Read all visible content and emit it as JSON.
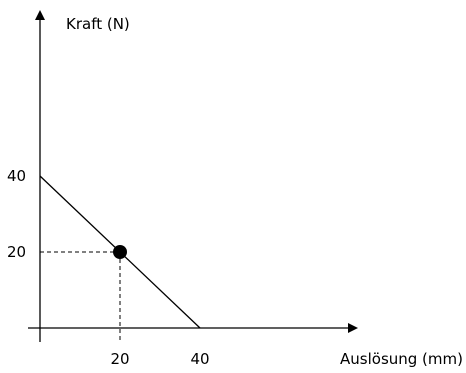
{
  "chart_data": {
    "type": "line",
    "title": "",
    "xlabel": "Auslösung (mm)",
    "ylabel": "Kraft (N)",
    "x_ticks": [
      20,
      40
    ],
    "y_ticks": [
      20,
      40
    ],
    "xlim": [
      0,
      80
    ],
    "ylim": [
      0,
      80
    ],
    "grid": false,
    "series": [
      {
        "x": [
          0,
          40
        ],
        "y": [
          40,
          0
        ]
      }
    ],
    "highlight_point": {
      "x": 20,
      "y": 20
    },
    "colors": {
      "line": "#000000",
      "axis": "#000000",
      "point": "#000000"
    }
  }
}
